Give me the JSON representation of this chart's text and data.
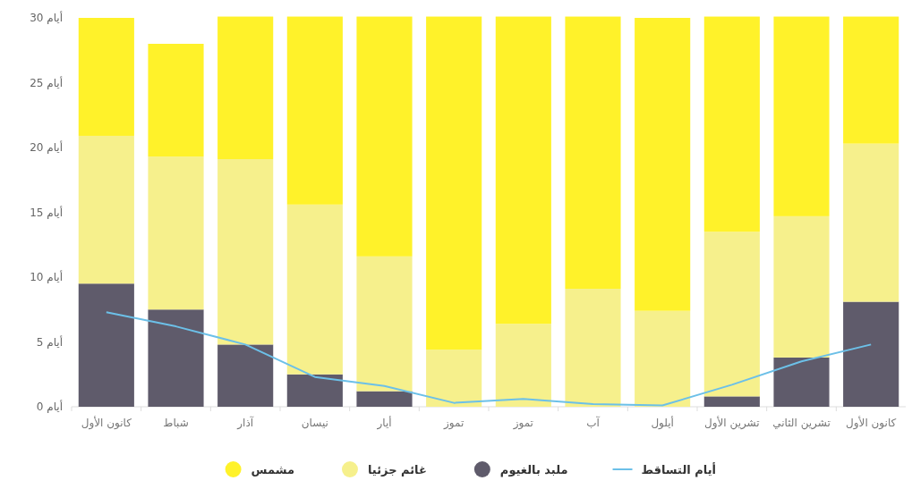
{
  "chart_data": {
    "type": "bar",
    "stacked": true,
    "legend": "bottom",
    "marker": "none",
    "line_style": "solid",
    "categories": [
      "كانون الأول",
      "شباط",
      "آذار",
      "نيسان",
      "أيار",
      "تموز",
      "تموز",
      "آب",
      "أيلول",
      "تشرين الأول",
      "تشرين الثاني",
      "كانون الأول"
    ],
    "ylim": [
      0,
      30
    ],
    "yticks": [
      {
        "value": 0,
        "label": "0 أيام"
      },
      {
        "value": 5,
        "label": "5 أيام"
      },
      {
        "value": 10,
        "label": "10 أيام"
      },
      {
        "value": 15,
        "label": "15 أيام"
      },
      {
        "value": 20,
        "label": "20 أيام"
      },
      {
        "value": 25,
        "label": "25 أيام"
      },
      {
        "value": 30,
        "label": "30 أيام"
      }
    ],
    "series": [
      {
        "name": "أيام التساقط",
        "type": "line",
        "color": "#6cc0e8",
        "values": [
          7.3,
          6.2,
          4.8,
          2.3,
          1.6,
          0.3,
          0.6,
          0.2,
          0.1,
          1.7,
          3.5,
          4.8
        ]
      },
      {
        "name": "ملبد بالغيوم",
        "color": "#5f5b6b",
        "values": [
          9.5,
          7.5,
          4.8,
          2.5,
          1.2,
          0,
          0,
          0,
          0,
          0.8,
          3.8,
          8.1
        ]
      },
      {
        "name": "غائم جزئيا",
        "color": "#f6f08c",
        "values": [
          11.4,
          11.8,
          14.3,
          13.1,
          10.4,
          4.4,
          6.4,
          9.1,
          7.4,
          12.7,
          10.9,
          12.2
        ]
      },
      {
        "name": "مشمس",
        "color": "#fff22a",
        "values": [
          9.1,
          8.7,
          11,
          14.5,
          18.5,
          25.7,
          23.7,
          21,
          22.6,
          16.6,
          15.4,
          9.8
        ]
      }
    ]
  }
}
